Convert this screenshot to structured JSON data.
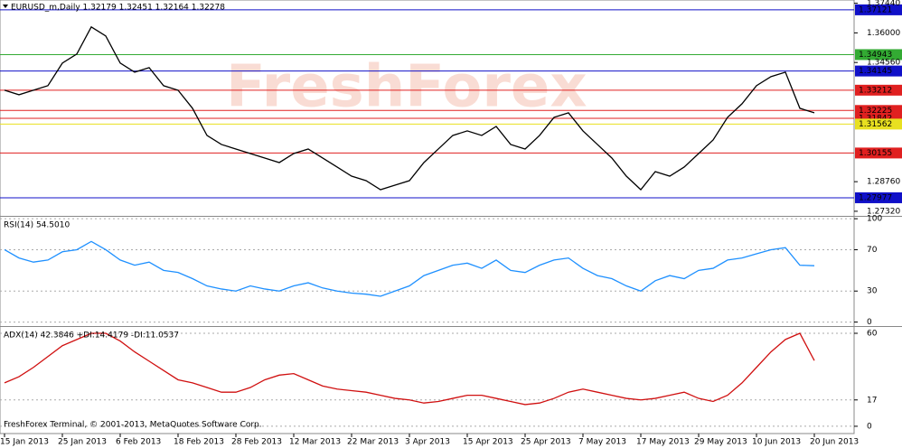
{
  "chart_data": [
    {
      "type": "line",
      "title": "EURUSD_m,Daily  1.32179 1.32451 1.32164 1.32278",
      "watermark": "FreshForex",
      "color": "#000000",
      "values": [
        1.3321,
        1.3299,
        1.3321,
        1.3343,
        1.3453,
        1.3497,
        1.3629,
        1.3585,
        1.3453,
        1.3409,
        1.3431,
        1.3343,
        1.3321,
        1.3233,
        1.3101,
        1.3057,
        1.3035,
        1.3013,
        1.2991,
        1.2969,
        1.3013,
        1.3035,
        1.2991,
        1.2947,
        1.2903,
        1.2881,
        1.2837,
        1.2859,
        1.2881,
        1.2969,
        1.3035,
        1.3101,
        1.3123,
        1.3101,
        1.3145,
        1.3057,
        1.3035,
        1.3101,
        1.3189,
        1.3211,
        1.3123,
        1.3057,
        1.2991,
        1.2903,
        1.2837,
        1.2925,
        1.2903,
        1.2947,
        1.3013,
        1.3079,
        1.3189,
        1.3255,
        1.3343,
        1.3387,
        1.3409,
        1.3233,
        1.3211
      ],
      "ylim": [
        1.2714,
        1.376
      ],
      "yticks": [
        {
          "value": 1.3744,
          "label": "1.37440"
        },
        {
          "value": 1.36,
          "label": "1.36000"
        },
        {
          "value": 1.3456,
          "label": "1.34560"
        },
        {
          "value": 1.2876,
          "label": "1.28760"
        },
        {
          "value": 1.2732,
          "label": "1.27320"
        }
      ],
      "grid": false,
      "levels": [
        {
          "value": 1.37121,
          "color": "#1010c8"
        },
        {
          "value": 1.34943,
          "color": "#33aa33"
        },
        {
          "value": 1.34145,
          "color": "#1010c8"
        },
        {
          "value": 1.33212,
          "color": "#e02020"
        },
        {
          "value": 1.32225,
          "color": "#e02020"
        },
        {
          "value": 1.31842,
          "color": "#e02020"
        },
        {
          "value": 1.31562,
          "color": "#e8e020"
        },
        {
          "value": 1.30155,
          "color": "#e02020"
        },
        {
          "value": 1.27977,
          "color": "#1010c8"
        }
      ]
    },
    {
      "type": "line",
      "title": "RSI(14) 54.5010",
      "color": "#1e90ff",
      "values": [
        70,
        62,
        58,
        60,
        68,
        70,
        78,
        70,
        60,
        55,
        58,
        50,
        48,
        42,
        35,
        32,
        30,
        35,
        32,
        30,
        35,
        38,
        33,
        30,
        28,
        27,
        25,
        30,
        35,
        45,
        50,
        55,
        57,
        52,
        60,
        50,
        48,
        55,
        60,
        62,
        52,
        45,
        42,
        35,
        30,
        40,
        45,
        42,
        50,
        52,
        60,
        62,
        66,
        70,
        72,
        55,
        54.5
      ],
      "ylim": [
        -3,
        101
      ],
      "yticks": [
        100,
        70,
        30,
        0
      ],
      "grid": true
    },
    {
      "type": "line",
      "title": "ADX(14) 42.3846 +DI:14.4179 -DI:11.0537",
      "footer": "FreshForex Terminal, © 2001-2013, MetaQuotes Software Corp.",
      "color": "#d01010",
      "values": [
        28,
        32,
        38,
        45,
        52,
        56,
        60,
        60,
        55,
        48,
        42,
        36,
        30,
        28,
        25,
        22,
        22,
        25,
        30,
        33,
        34,
        30,
        26,
        24,
        23,
        22,
        20,
        18,
        17,
        15,
        16,
        18,
        20,
        20,
        18,
        16,
        14,
        15,
        18,
        22,
        24,
        22,
        20,
        18,
        17,
        18,
        20,
        22,
        18,
        16,
        20,
        28,
        38,
        48,
        56,
        60,
        42.4
      ],
      "ylim": [
        -4.7,
        63.5
      ],
      "yticks": [
        60,
        17,
        0
      ],
      "grid": true,
      "categories": [
        "15 Jan 2013",
        null,
        null,
        null,
        "25 Jan 2013",
        null,
        null,
        null,
        "6 Feb 2013",
        null,
        null,
        null,
        "18 Feb 2013",
        null,
        null,
        null,
        "28 Feb 2013",
        null,
        null,
        null,
        "12 Mar 2013",
        null,
        null,
        null,
        "22 Mar 2013",
        null,
        null,
        null,
        "3 Apr 2013",
        null,
        null,
        null,
        "15 Apr 2013",
        null,
        null,
        null,
        "25 Apr 2013",
        null,
        null,
        null,
        "7 May 2013",
        null,
        null,
        null,
        "17 May 2013",
        null,
        null,
        null,
        "29 May 2013",
        null,
        null,
        null,
        "10 Jun 2013",
        null,
        null,
        null,
        "20 Jun 2013"
      ]
    }
  ]
}
